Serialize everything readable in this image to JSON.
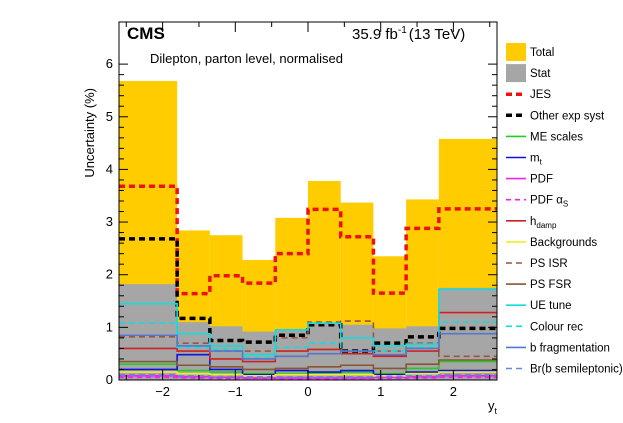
{
  "header": {
    "experiment": "CMS",
    "luminosity": "35.9 fb",
    "lumi_exponent": "-1",
    "energy": "(13 TeV)",
    "annotation": "Dilepton, parton level, normalised"
  },
  "chart_data": {
    "type": "step-histogram",
    "xlabel": "y",
    "xlabel_sub": "t",
    "ylabel": "Uncertainty (%)",
    "xlim": [
      -2.6,
      2.6
    ],
    "ylim": [
      0,
      6.8
    ],
    "x_ticks": [
      -2,
      -1,
      0,
      1,
      2
    ],
    "x_tick_labels": [
      "−2",
      "−1",
      "0",
      "1",
      "2"
    ],
    "y_ticks": [
      0,
      1,
      2,
      3,
      4,
      5,
      6
    ],
    "y_tick_labels": [
      "0",
      "1",
      "2",
      "3",
      "4",
      "5",
      "6"
    ],
    "bin_edges": [
      -2.6,
      -1.8,
      -1.35,
      -0.9,
      -0.45,
      0.0,
      0.45,
      0.9,
      1.35,
      1.8,
      2.6
    ],
    "filled": [
      {
        "name": "Total",
        "color": "#ffcc00",
        "values": [
          5.68,
          2.84,
          2.75,
          2.28,
          3.08,
          3.78,
          3.37,
          2.35,
          3.43,
          4.58
        ]
      },
      {
        "name": "Stat",
        "color": "#a6a6a6",
        "values": [
          1.82,
          1.1,
          1.02,
          0.92,
          0.97,
          1.08,
          1.05,
          0.98,
          1.02,
          1.75
        ]
      }
    ],
    "series": [
      {
        "name": "JES",
        "color": "#ee1111",
        "dash": "6,4",
        "width": 3.5,
        "values": [
          3.68,
          1.64,
          1.98,
          1.84,
          2.4,
          3.24,
          2.72,
          1.65,
          2.88,
          3.25
        ]
      },
      {
        "name": "Other exp syst",
        "color": "#000000",
        "dash": "6,4",
        "width": 3.5,
        "values": [
          2.68,
          1.17,
          0.75,
          0.72,
          0.85,
          1.05,
          0.55,
          0.7,
          0.82,
          0.98
        ]
      },
      {
        "name": "ME scales",
        "color": "#22cc22",
        "dash": "",
        "width": 1.6,
        "values": [
          0.3,
          0.18,
          0.15,
          0.12,
          0.12,
          0.12,
          0.15,
          0.12,
          0.22,
          0.35
        ]
      },
      {
        "name": "m_t",
        "color": "#1111dd",
        "dash": "",
        "width": 1.6,
        "values": [
          0.2,
          0.48,
          0.2,
          0.1,
          0.18,
          0.15,
          0.18,
          0.1,
          0.15,
          0.18
        ]
      },
      {
        "name": "PDF",
        "color": "#ee22ee",
        "dash": "",
        "width": 1.6,
        "values": [
          0.08,
          0.06,
          0.05,
          0.04,
          0.04,
          0.04,
          0.04,
          0.05,
          0.06,
          0.08
        ]
      },
      {
        "name": "PDF αs",
        "color": "#ee22ee",
        "dash": "5,4",
        "width": 1.6,
        "values": [
          0.05,
          0.04,
          0.03,
          0.03,
          0.02,
          0.02,
          0.03,
          0.03,
          0.04,
          0.05
        ]
      },
      {
        "name": "h_damp",
        "color": "#cc2222",
        "dash": "",
        "width": 1.6,
        "values": [
          0.6,
          0.55,
          0.4,
          0.35,
          0.55,
          0.58,
          0.5,
          0.45,
          0.55,
          1.28
        ]
      },
      {
        "name": "Backgrounds",
        "color": "#eeee22",
        "dash": "",
        "width": 1.6,
        "values": [
          0.15,
          0.12,
          0.1,
          0.08,
          0.1,
          0.1,
          0.1,
          0.08,
          0.12,
          0.15
        ]
      },
      {
        "name": "PS ISR",
        "color": "#995544",
        "dash": "6,4",
        "width": 1.6,
        "values": [
          0.82,
          0.7,
          0.55,
          0.55,
          0.8,
          1.1,
          1.12,
          0.55,
          0.7,
          0.45
        ]
      },
      {
        "name": "PS FSR",
        "color": "#885533",
        "dash": "",
        "width": 1.6,
        "values": [
          0.35,
          0.28,
          0.25,
          0.2,
          0.22,
          0.25,
          0.28,
          0.22,
          0.3,
          0.38
        ]
      },
      {
        "name": "UE tune",
        "color": "#11dddd",
        "dash": "",
        "width": 1.6,
        "values": [
          1.45,
          0.88,
          0.65,
          0.48,
          0.95,
          1.08,
          0.8,
          0.65,
          0.68,
          1.72
        ]
      },
      {
        "name": "Colour rec",
        "color": "#11dddd",
        "dash": "6,4",
        "width": 1.6,
        "values": [
          1.08,
          0.62,
          0.58,
          0.42,
          0.62,
          0.7,
          0.55,
          0.55,
          0.62,
          1.1
        ]
      },
      {
        "name": "b fragmentation",
        "color": "#5577cc",
        "dash": "",
        "width": 1.6,
        "values": [
          0.85,
          0.65,
          0.55,
          0.4,
          0.45,
          0.5,
          0.55,
          0.48,
          0.6,
          0.88
        ]
      },
      {
        "name": "Br(b semileptonic)",
        "color": "#6688dd",
        "dash": "6,4",
        "width": 1.6,
        "values": [
          0.1,
          0.08,
          0.07,
          0.06,
          0.06,
          0.06,
          0.06,
          0.07,
          0.08,
          0.1
        ]
      }
    ],
    "legend": {
      "placement": "right-outside",
      "entries": [
        {
          "label": "Total",
          "marker": "box",
          "color": "#ffcc00"
        },
        {
          "label": "Stat",
          "marker": "box",
          "color": "#a6a6a6"
        },
        {
          "label": "JES",
          "marker": "line",
          "color": "#ee1111",
          "dash": "6,4",
          "width": 3.5
        },
        {
          "label": "Other exp syst",
          "marker": "line",
          "color": "#000000",
          "dash": "6,4",
          "width": 3.5
        },
        {
          "label": "ME scales",
          "marker": "line",
          "color": "#22cc22",
          "dash": "",
          "width": 1.6
        },
        {
          "label": "m",
          "sub": "t",
          "marker": "line",
          "color": "#1111dd",
          "dash": "",
          "width": 1.6
        },
        {
          "label": "PDF",
          "marker": "line",
          "color": "#ee22ee",
          "dash": "",
          "width": 1.6
        },
        {
          "label": "PDF α",
          "sub": "S",
          "marker": "line",
          "color": "#ee22ee",
          "dash": "5,4",
          "width": 1.6
        },
        {
          "label": "h",
          "sub": "damp",
          "marker": "line",
          "color": "#cc2222",
          "dash": "",
          "width": 1.6
        },
        {
          "label": "Backgrounds",
          "marker": "line",
          "color": "#eeee22",
          "dash": "",
          "width": 1.6
        },
        {
          "label": "PS ISR",
          "marker": "line",
          "color": "#995544",
          "dash": "6,4",
          "width": 1.6
        },
        {
          "label": "PS FSR",
          "marker": "line",
          "color": "#885533",
          "dash": "",
          "width": 1.6
        },
        {
          "label": "UE tune",
          "marker": "line",
          "color": "#11dddd",
          "dash": "",
          "width": 1.6
        },
        {
          "label": "Colour rec",
          "marker": "line",
          "color": "#11dddd",
          "dash": "6,4",
          "width": 1.6
        },
        {
          "label": "b fragmentation",
          "marker": "line",
          "color": "#5577cc",
          "dash": "",
          "width": 1.6
        },
        {
          "label": "Br(b semileptonic)",
          "marker": "line",
          "color": "#6688dd",
          "dash": "6,4",
          "width": 1.6
        }
      ]
    }
  }
}
